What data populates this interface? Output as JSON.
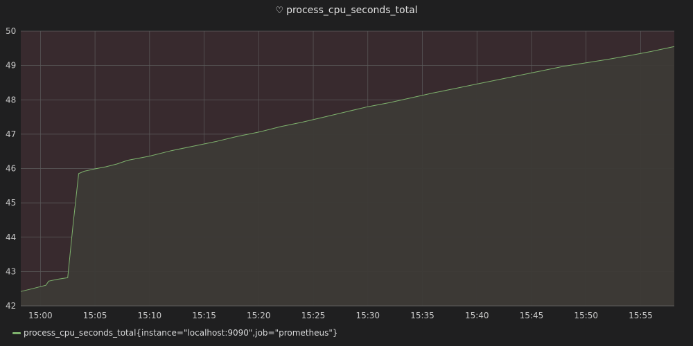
{
  "panel": {
    "title": "process_cpu_seconds_total",
    "title_icon": "heart-icon"
  },
  "colors": {
    "background": "#1f1f20",
    "plot_bg": "#382a2e",
    "series": "#7eb26d",
    "area_fill": "#3c3a36",
    "grid": "#5c5c5c"
  },
  "chart_data": {
    "type": "area",
    "title": "process_cpu_seconds_total",
    "xlabel": "",
    "ylabel": "",
    "x_ticks": [
      "15:00",
      "15:05",
      "15:10",
      "15:15",
      "15:20",
      "15:25",
      "15:30",
      "15:35",
      "15:40",
      "15:45",
      "15:50",
      "15:55"
    ],
    "y_ticks": [
      "42",
      "43",
      "44",
      "45",
      "46",
      "47",
      "48",
      "49",
      "50"
    ],
    "xlim": [
      "14:58:12",
      "15:58:05"
    ],
    "ylim": [
      42,
      50
    ],
    "grid": true,
    "legend_position": "bottom-left",
    "series": [
      {
        "name": "process_cpu_seconds_total{instance=\"localhost:9090\",job=\"prometheus\"}",
        "x": [
          "14:58:12",
          "14:59:00",
          "15:00:30",
          "15:00:45",
          "15:01:30",
          "15:02:30",
          "15:03:00",
          "15:03:30",
          "15:04:00",
          "15:05:00",
          "15:06:00",
          "15:07:00",
          "15:08:00",
          "15:09:00",
          "15:10:00",
          "15:12:00",
          "15:14:00",
          "15:16:00",
          "15:18:00",
          "15:20:00",
          "15:22:00",
          "15:24:00",
          "15:26:00",
          "15:28:00",
          "15:30:00",
          "15:32:00",
          "15:34:00",
          "15:36:00",
          "15:38:00",
          "15:40:00",
          "15:42:00",
          "15:44:00",
          "15:46:00",
          "15:48:00",
          "15:50:00",
          "15:52:00",
          "15:54:00",
          "15:56:00",
          "15:58:05"
        ],
        "values": [
          42.42,
          42.48,
          42.6,
          42.72,
          42.77,
          42.82,
          44.4,
          45.85,
          45.92,
          45.99,
          46.05,
          46.13,
          46.24,
          46.3,
          46.36,
          46.52,
          46.65,
          46.78,
          46.93,
          47.06,
          47.22,
          47.35,
          47.5,
          47.65,
          47.8,
          47.92,
          48.06,
          48.2,
          48.33,
          48.46,
          48.59,
          48.72,
          48.85,
          48.98,
          49.08,
          49.18,
          49.29,
          49.41,
          49.55
        ]
      }
    ]
  }
}
